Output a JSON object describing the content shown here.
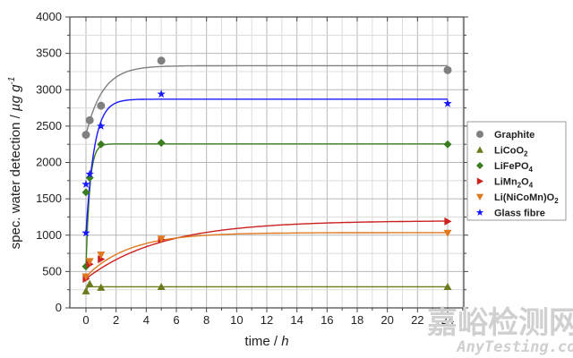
{
  "chart_data": {
    "type": "scatter",
    "title": "",
    "xlabel": "time / h",
    "ylabel": "spec. water detection / µg g⁻¹",
    "xlim": [
      -3,
      27
    ],
    "ylim": [
      0,
      4000
    ],
    "xticks": [
      0,
      2,
      4,
      6,
      8,
      10,
      12,
      14,
      16,
      18,
      20,
      22,
      24
    ],
    "yticks": [
      0,
      500,
      1000,
      1500,
      2000,
      2500,
      3000,
      3500,
      4000
    ],
    "grid": true,
    "legend_position": "right",
    "series": [
      {
        "name": "Graphite",
        "marker": "circle",
        "color": "#808080",
        "x": [
          0,
          0.25,
          1,
          5,
          24
        ],
        "y": [
          2380,
          2580,
          2780,
          3400,
          3270
        ],
        "fit_plateau": 3330,
        "fit_rate": 0.9
      },
      {
        "name": "LiCoO2",
        "marker": "triangle-up",
        "color": "#6b7a1c",
        "x": [
          0,
          0.25,
          1,
          5,
          24
        ],
        "y": [
          230,
          330,
          280,
          290,
          290
        ],
        "fit_plateau": 290,
        "fit_rate": 20
      },
      {
        "name": "LiFePO4",
        "marker": "diamond",
        "color": "#3a7d1e",
        "x": [
          0,
          0,
          0.25,
          1,
          5,
          24
        ],
        "y": [
          570,
          1590,
          1790,
          2250,
          2270,
          2250
        ],
        "fit_plateau": 2255,
        "fit_rate": 4
      },
      {
        "name": "LiMn2O4",
        "marker": "triangle-right",
        "color": "#cc2020",
        "x": [
          0,
          0.25,
          1,
          5,
          24
        ],
        "y": [
          400,
          600,
          670,
          940,
          1190
        ],
        "fit_plateau": 1200,
        "fit_rate": 0.2
      },
      {
        "name": "Li(NiCoMn)O2",
        "marker": "triangle-down",
        "color": "#e07820",
        "x": [
          0,
          0.25,
          1,
          5,
          24
        ],
        "y": [
          430,
          640,
          730,
          950,
          1030
        ],
        "fit_plateau": 1035,
        "fit_rate": 0.35
      },
      {
        "name": "Glass fibre",
        "marker": "star",
        "color": "#1a1aff",
        "x": [
          0,
          0,
          0.25,
          1,
          5,
          24
        ],
        "y": [
          1030,
          1700,
          1840,
          2500,
          2940,
          2810
        ],
        "fit_plateau": 2870,
        "fit_rate": 1.8
      }
    ]
  },
  "legend": {
    "items": [
      {
        "base": "Graphite",
        "subs": []
      },
      {
        "base": "LiCoO",
        "subs": [
          "2"
        ]
      },
      {
        "base": "LiFePO",
        "subs": [
          "4"
        ]
      },
      {
        "base": "LiMn",
        "subs": [
          "2",
          "O",
          "4"
        ]
      },
      {
        "base": "Li(NiCoMn)O",
        "subs": [
          "2"
        ]
      },
      {
        "base": "Glass fibre",
        "subs": []
      }
    ]
  },
  "watermark": {
    "cn": "嘉峪检测网",
    "en": "AnyTesting.com"
  }
}
